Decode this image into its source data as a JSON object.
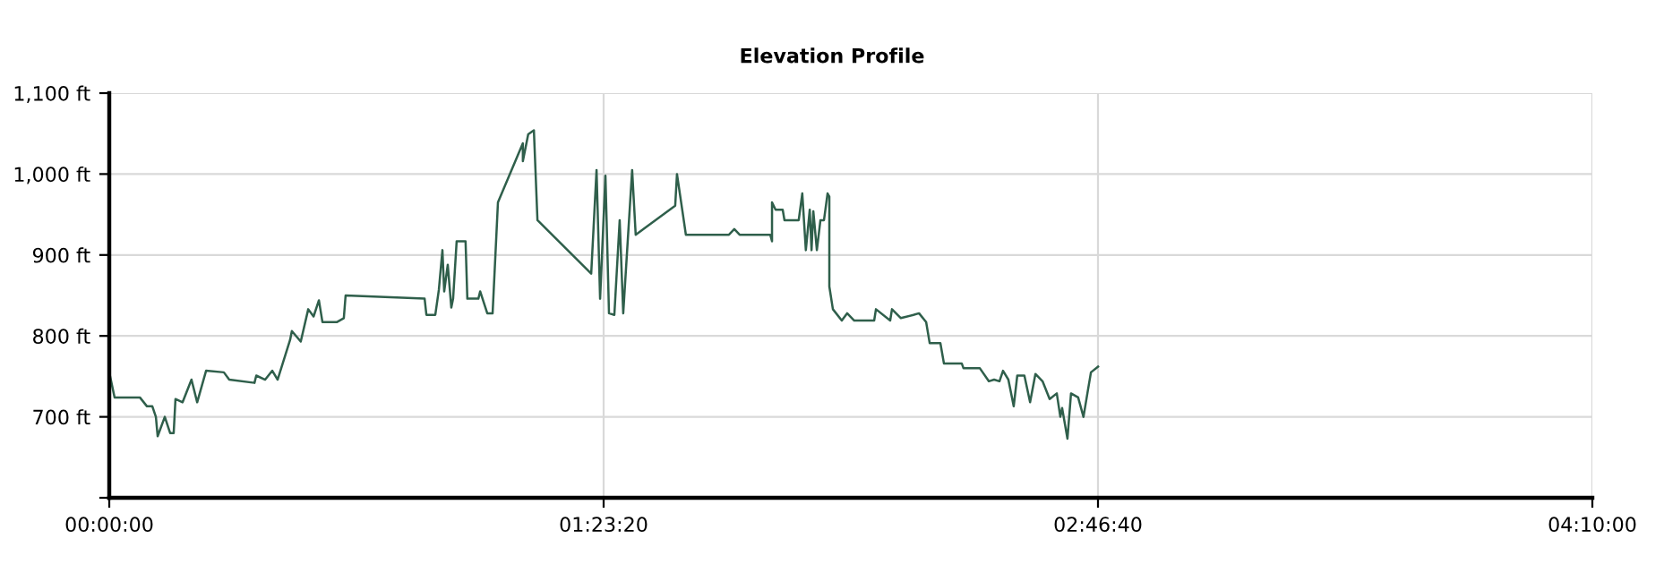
{
  "chart_data": {
    "type": "line",
    "title": "Elevation Profile",
    "x": [
      0,
      0.015,
      0.086,
      0.106,
      0.121,
      0.131,
      0.136,
      0.156,
      0.171,
      0.181,
      0.186,
      0.206,
      0.231,
      0.247,
      0.272,
      0.322,
      0.337,
      0.408,
      0.413,
      0.438,
      0.458,
      0.473,
      0.508,
      0.513,
      0.538,
      0.559,
      0.574,
      0.589,
      0.599,
      0.639,
      0.659,
      0.664,
      0.886,
      0.891,
      0.916,
      0.926,
      0.936,
      0.941,
      0.951,
      0.961,
      0.966,
      0.976,
      1.001,
      1.006,
      1.037,
      1.042,
      1.062,
      1.077,
      1.092,
      1.162,
      1.162,
      1.177,
      1.193,
      1.203,
      1.354,
      1.369,
      1.379,
      1.394,
      1.404,
      1.419,
      1.434,
      1.444,
      1.469,
      1.479,
      1.59,
      1.595,
      1.62,
      1.741,
      1.756,
      1.771,
      1.857,
      1.862,
      1.862,
      1.872,
      1.892,
      1.897,
      1.937,
      1.947,
      1.957,
      1.968,
      1.973,
      1.978,
      1.988,
      1.998,
      2.008,
      2.018,
      2.023,
      2.023,
      2.033,
      2.058,
      2.073,
      2.093,
      2.149,
      2.154,
      2.194,
      2.199,
      2.224,
      2.259,
      2.275,
      2.295,
      2.305,
      2.335,
      2.345,
      2.395,
      2.4,
      2.446,
      2.471,
      2.486,
      2.501,
      2.511,
      2.526,
      2.541,
      2.551,
      2.571,
      2.587,
      2.602,
      2.622,
      2.642,
      2.662,
      2.672,
      2.677,
      2.692,
      2.702,
      2.722,
      2.737,
      2.748,
      2.758,
      2.778
    ],
    "series": [
      {
        "color": "#2f5f4b",
        "values": [
          755,
          724,
          724,
          713,
          713,
          700,
          676,
          700,
          680,
          680,
          722,
          718,
          746,
          718,
          757,
          755,
          746,
          742,
          751,
          746,
          757,
          746,
          795,
          806,
          793,
          833,
          824,
          844,
          817,
          817,
          822,
          850,
          846,
          826,
          826,
          857,
          906,
          855,
          888,
          835,
          846,
          917,
          917,
          846,
          846,
          855,
          828,
          828,
          965,
          1038,
          1016,
          1049,
          1054,
          943,
          877,
          1005,
          846,
          998,
          828,
          826,
          943,
          828,
          1005,
          925,
          961,
          1000,
          925,
          925,
          932,
          925,
          925,
          917,
          965,
          956,
          956,
          943,
          943,
          976,
          906,
          956,
          906,
          954,
          906,
          943,
          943,
          976,
          972,
          861,
          833,
          819,
          828,
          819,
          819,
          833,
          819,
          833,
          822,
          826,
          828,
          817,
          791,
          791,
          766,
          766,
          760,
          760,
          744,
          746,
          744,
          757,
          746,
          713,
          751,
          751,
          718,
          753,
          744,
          722,
          729,
          700,
          711,
          673,
          729,
          724,
          700,
          729,
          755,
          762
        ]
      }
    ],
    "xlim": [
      0,
      4.16667
    ],
    "xticks": [
      {
        "value": 0,
        "label": "00:00:00"
      },
      {
        "value": 1.38889,
        "label": "01:23:20"
      },
      {
        "value": 2.77778,
        "label": "02:46:40"
      },
      {
        "value": 4.16667,
        "label": "04:10:00"
      }
    ],
    "ylim": [
      600,
      1100
    ],
    "yticks": [
      {
        "value": 600,
        "label": null
      },
      {
        "value": 700,
        "label": "700 ft"
      },
      {
        "value": 800,
        "label": "800 ft"
      },
      {
        "value": 900,
        "label": "900 ft"
      },
      {
        "value": 1000,
        "label": "1,000 ft"
      },
      {
        "value": 1100,
        "label": "1,100 ft"
      }
    ],
    "grid": true,
    "legend": false,
    "marker": "none",
    "line_style": "solid"
  }
}
